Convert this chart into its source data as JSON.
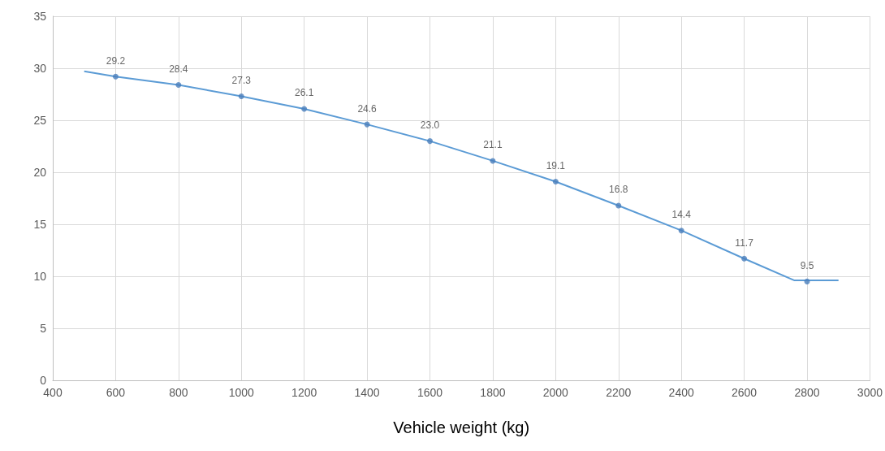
{
  "chart_data": {
    "type": "scatter",
    "xlabel": "Vehicle weight (kg)",
    "xlim": [
      400,
      3000
    ],
    "xticks": [
      400,
      600,
      800,
      1000,
      1200,
      1400,
      1600,
      1800,
      2000,
      2200,
      2400,
      2600,
      2800,
      3000
    ],
    "ylim": [
      0,
      35
    ],
    "yticks": [
      0,
      5,
      10,
      15,
      20,
      25,
      30,
      35
    ],
    "grid": true,
    "marker": "circle",
    "series": [
      {
        "type": "line",
        "color": "#5b9bd5",
        "marker": "none",
        "x": [
          500,
          600,
          800,
          1000,
          1200,
          1400,
          1600,
          1800,
          2000,
          2200,
          2400,
          2600,
          2760,
          2900
        ],
        "values": [
          29.7,
          29.2,
          28.4,
          27.3,
          26.1,
          24.6,
          23.0,
          21.1,
          19.1,
          16.8,
          14.4,
          11.7,
          9.6,
          9.6
        ]
      },
      {
        "color": "#4a7ebb",
        "x": [
          600,
          800,
          1000,
          1200,
          1400,
          1600,
          1800,
          2000,
          2200,
          2400,
          2600,
          2800
        ],
        "values": [
          29.2,
          28.4,
          27.3,
          26.1,
          24.6,
          23.0,
          21.1,
          19.1,
          16.8,
          14.4,
          11.7,
          9.5
        ],
        "value_labels": [
          "29.2",
          "28.4",
          "27.3",
          "26.1",
          "24.6",
          "23.0",
          "21.1",
          "19.1",
          "16.8",
          "14.4",
          "11.7",
          "9.5"
        ]
      }
    ]
  }
}
